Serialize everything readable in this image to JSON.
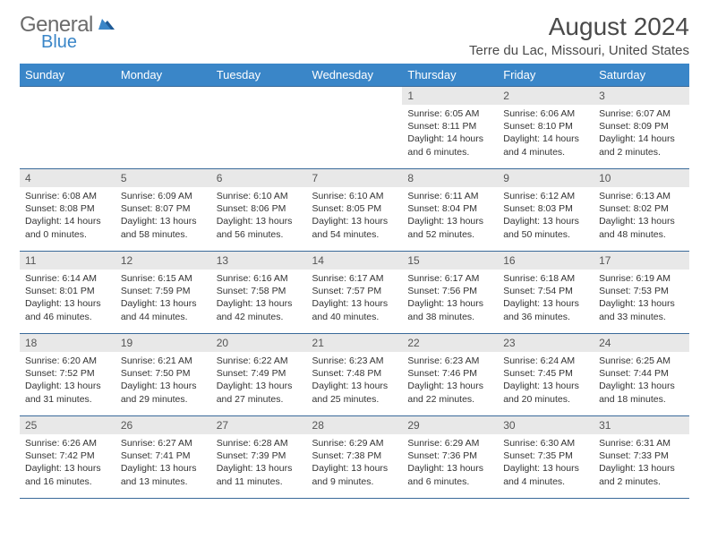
{
  "logo": {
    "main": "General",
    "sub": "Blue"
  },
  "title": "August 2024",
  "location": "Terre du Lac, Missouri, United States",
  "colors": {
    "header_bg": "#3a86c8",
    "header_fg": "#ffffff",
    "daynum_bg": "#e8e8e8",
    "border": "#3a6a9a",
    "text": "#333333",
    "logo_gray": "#6b6b6b",
    "logo_blue": "#3a86c8"
  },
  "weekdays": [
    "Sunday",
    "Monday",
    "Tuesday",
    "Wednesday",
    "Thursday",
    "Friday",
    "Saturday"
  ],
  "weeks": [
    [
      {
        "empty": true
      },
      {
        "empty": true
      },
      {
        "empty": true
      },
      {
        "empty": true
      },
      {
        "n": "1",
        "sr": "Sunrise: 6:05 AM",
        "ss": "Sunset: 8:11 PM",
        "d1": "Daylight: 14 hours",
        "d2": "and 6 minutes."
      },
      {
        "n": "2",
        "sr": "Sunrise: 6:06 AM",
        "ss": "Sunset: 8:10 PM",
        "d1": "Daylight: 14 hours",
        "d2": "and 4 minutes."
      },
      {
        "n": "3",
        "sr": "Sunrise: 6:07 AM",
        "ss": "Sunset: 8:09 PM",
        "d1": "Daylight: 14 hours",
        "d2": "and 2 minutes."
      }
    ],
    [
      {
        "n": "4",
        "sr": "Sunrise: 6:08 AM",
        "ss": "Sunset: 8:08 PM",
        "d1": "Daylight: 14 hours",
        "d2": "and 0 minutes."
      },
      {
        "n": "5",
        "sr": "Sunrise: 6:09 AM",
        "ss": "Sunset: 8:07 PM",
        "d1": "Daylight: 13 hours",
        "d2": "and 58 minutes."
      },
      {
        "n": "6",
        "sr": "Sunrise: 6:10 AM",
        "ss": "Sunset: 8:06 PM",
        "d1": "Daylight: 13 hours",
        "d2": "and 56 minutes."
      },
      {
        "n": "7",
        "sr": "Sunrise: 6:10 AM",
        "ss": "Sunset: 8:05 PM",
        "d1": "Daylight: 13 hours",
        "d2": "and 54 minutes."
      },
      {
        "n": "8",
        "sr": "Sunrise: 6:11 AM",
        "ss": "Sunset: 8:04 PM",
        "d1": "Daylight: 13 hours",
        "d2": "and 52 minutes."
      },
      {
        "n": "9",
        "sr": "Sunrise: 6:12 AM",
        "ss": "Sunset: 8:03 PM",
        "d1": "Daylight: 13 hours",
        "d2": "and 50 minutes."
      },
      {
        "n": "10",
        "sr": "Sunrise: 6:13 AM",
        "ss": "Sunset: 8:02 PM",
        "d1": "Daylight: 13 hours",
        "d2": "and 48 minutes."
      }
    ],
    [
      {
        "n": "11",
        "sr": "Sunrise: 6:14 AM",
        "ss": "Sunset: 8:01 PM",
        "d1": "Daylight: 13 hours",
        "d2": "and 46 minutes."
      },
      {
        "n": "12",
        "sr": "Sunrise: 6:15 AM",
        "ss": "Sunset: 7:59 PM",
        "d1": "Daylight: 13 hours",
        "d2": "and 44 minutes."
      },
      {
        "n": "13",
        "sr": "Sunrise: 6:16 AM",
        "ss": "Sunset: 7:58 PM",
        "d1": "Daylight: 13 hours",
        "d2": "and 42 minutes."
      },
      {
        "n": "14",
        "sr": "Sunrise: 6:17 AM",
        "ss": "Sunset: 7:57 PM",
        "d1": "Daylight: 13 hours",
        "d2": "and 40 minutes."
      },
      {
        "n": "15",
        "sr": "Sunrise: 6:17 AM",
        "ss": "Sunset: 7:56 PM",
        "d1": "Daylight: 13 hours",
        "d2": "and 38 minutes."
      },
      {
        "n": "16",
        "sr": "Sunrise: 6:18 AM",
        "ss": "Sunset: 7:54 PM",
        "d1": "Daylight: 13 hours",
        "d2": "and 36 minutes."
      },
      {
        "n": "17",
        "sr": "Sunrise: 6:19 AM",
        "ss": "Sunset: 7:53 PM",
        "d1": "Daylight: 13 hours",
        "d2": "and 33 minutes."
      }
    ],
    [
      {
        "n": "18",
        "sr": "Sunrise: 6:20 AM",
        "ss": "Sunset: 7:52 PM",
        "d1": "Daylight: 13 hours",
        "d2": "and 31 minutes."
      },
      {
        "n": "19",
        "sr": "Sunrise: 6:21 AM",
        "ss": "Sunset: 7:50 PM",
        "d1": "Daylight: 13 hours",
        "d2": "and 29 minutes."
      },
      {
        "n": "20",
        "sr": "Sunrise: 6:22 AM",
        "ss": "Sunset: 7:49 PM",
        "d1": "Daylight: 13 hours",
        "d2": "and 27 minutes."
      },
      {
        "n": "21",
        "sr": "Sunrise: 6:23 AM",
        "ss": "Sunset: 7:48 PM",
        "d1": "Daylight: 13 hours",
        "d2": "and 25 minutes."
      },
      {
        "n": "22",
        "sr": "Sunrise: 6:23 AM",
        "ss": "Sunset: 7:46 PM",
        "d1": "Daylight: 13 hours",
        "d2": "and 22 minutes."
      },
      {
        "n": "23",
        "sr": "Sunrise: 6:24 AM",
        "ss": "Sunset: 7:45 PM",
        "d1": "Daylight: 13 hours",
        "d2": "and 20 minutes."
      },
      {
        "n": "24",
        "sr": "Sunrise: 6:25 AM",
        "ss": "Sunset: 7:44 PM",
        "d1": "Daylight: 13 hours",
        "d2": "and 18 minutes."
      }
    ],
    [
      {
        "n": "25",
        "sr": "Sunrise: 6:26 AM",
        "ss": "Sunset: 7:42 PM",
        "d1": "Daylight: 13 hours",
        "d2": "and 16 minutes."
      },
      {
        "n": "26",
        "sr": "Sunrise: 6:27 AM",
        "ss": "Sunset: 7:41 PM",
        "d1": "Daylight: 13 hours",
        "d2": "and 13 minutes."
      },
      {
        "n": "27",
        "sr": "Sunrise: 6:28 AM",
        "ss": "Sunset: 7:39 PM",
        "d1": "Daylight: 13 hours",
        "d2": "and 11 minutes."
      },
      {
        "n": "28",
        "sr": "Sunrise: 6:29 AM",
        "ss": "Sunset: 7:38 PM",
        "d1": "Daylight: 13 hours",
        "d2": "and 9 minutes."
      },
      {
        "n": "29",
        "sr": "Sunrise: 6:29 AM",
        "ss": "Sunset: 7:36 PM",
        "d1": "Daylight: 13 hours",
        "d2": "and 6 minutes."
      },
      {
        "n": "30",
        "sr": "Sunrise: 6:30 AM",
        "ss": "Sunset: 7:35 PM",
        "d1": "Daylight: 13 hours",
        "d2": "and 4 minutes."
      },
      {
        "n": "31",
        "sr": "Sunrise: 6:31 AM",
        "ss": "Sunset: 7:33 PM",
        "d1": "Daylight: 13 hours",
        "d2": "and 2 minutes."
      }
    ]
  ]
}
